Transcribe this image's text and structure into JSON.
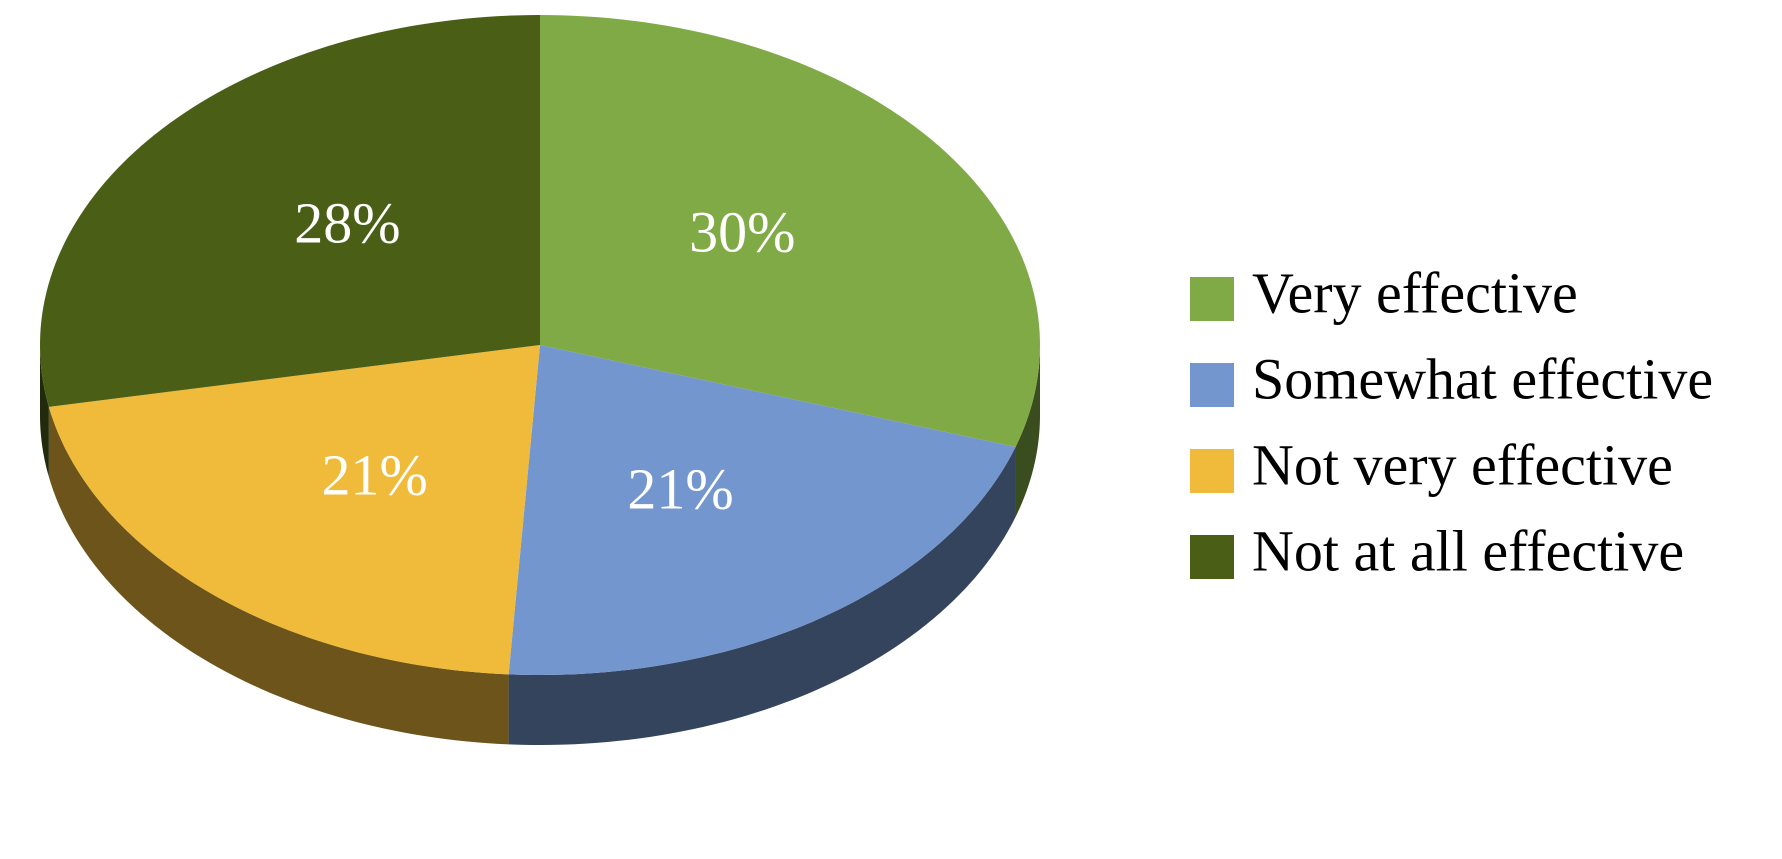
{
  "chart_data": {
    "type": "pie",
    "categories": [
      "Very effective",
      "Somewhat effective",
      "Not very effective",
      "Not at all effective"
    ],
    "values": [
      30,
      21,
      21,
      28
    ],
    "value_labels": [
      "30%",
      "21%",
      "21%",
      "28%"
    ],
    "colors": [
      "#7faa45",
      "#7396ce",
      "#f0ba3a",
      "#4a5e16"
    ],
    "legend": "right"
  }
}
